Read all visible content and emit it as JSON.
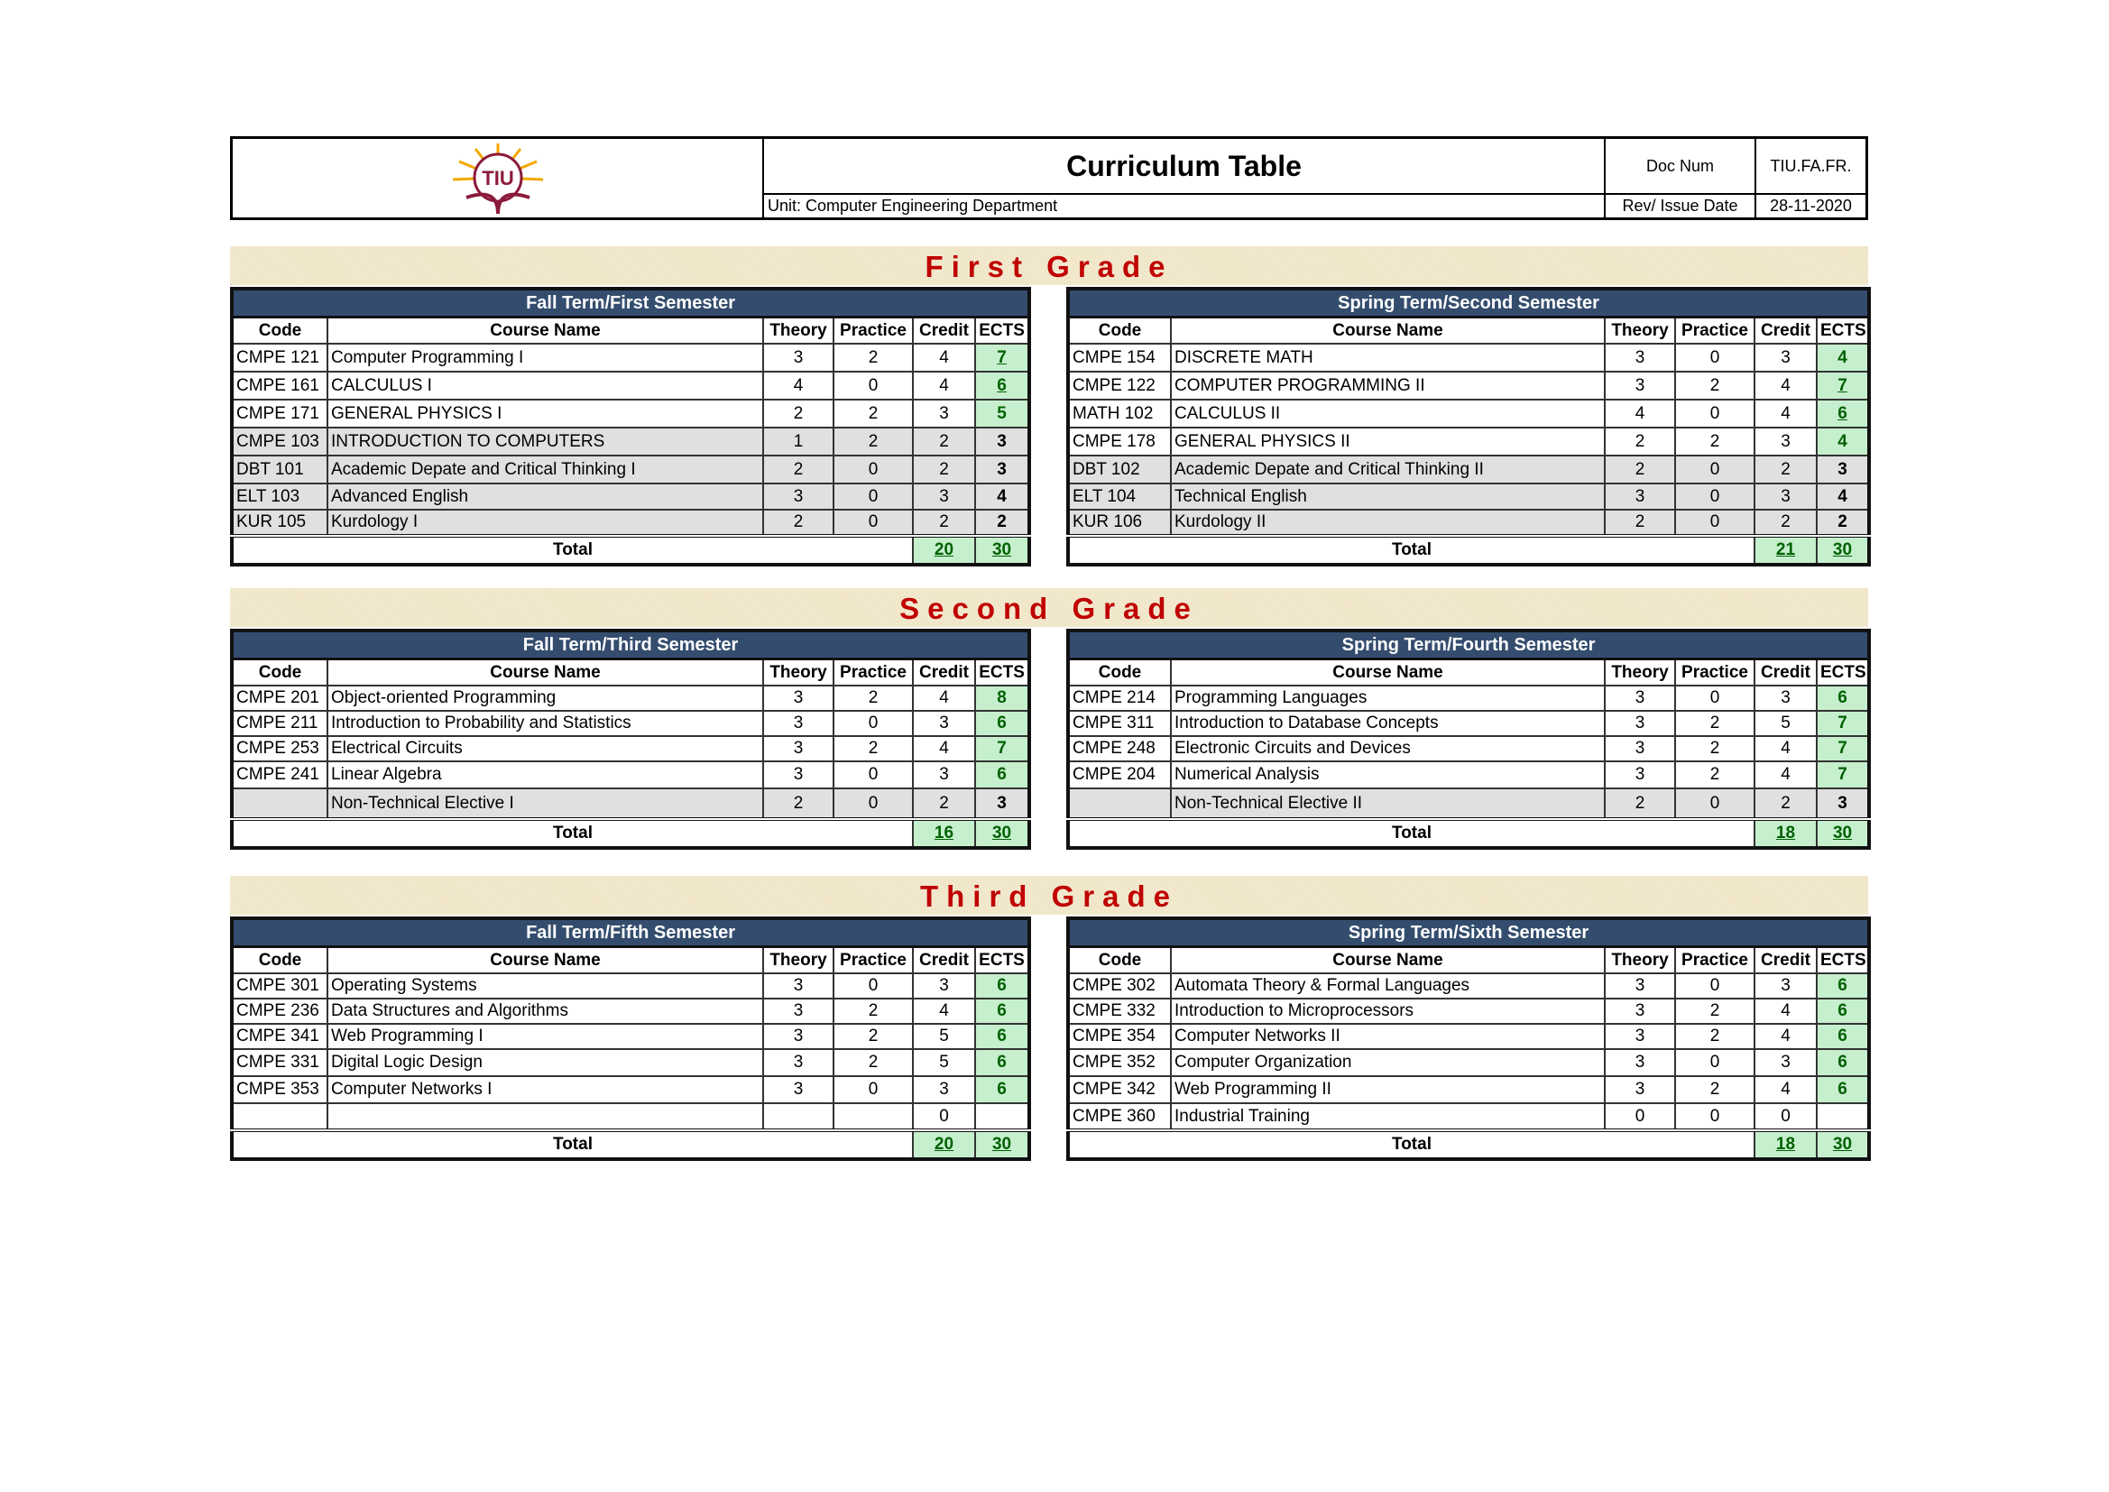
{
  "header": {
    "title": "Curriculum Table",
    "unit": "Unit: Computer Engineering Department",
    "doc_num_label": "Doc Num",
    "doc_num_value": "TIU.FA.FR.",
    "rev_label": "Rev/ Issue Date",
    "rev_value": "28-11-2020",
    "logo_text": "TIU"
  },
  "columns": [
    "Code",
    "Course Name",
    "Theory",
    "Practice",
    "Credit",
    "ECTS"
  ],
  "total_label": "Total",
  "colors": {
    "header_bg": "#344d6e",
    "grade_title": "#c00000",
    "ects_green_bg": "#c6efce",
    "ects_green_text": "#006100",
    "shaded_row": "#e0e0e0"
  },
  "grades": [
    {
      "title": "First Grade",
      "semesters": [
        {
          "title": "Fall Term/First Semester",
          "total_credit": "20",
          "total_ects": "30",
          "rows": [
            {
              "code": "CMPE 121",
              "name": "Computer Programming I",
              "theory": "3",
              "practice": "2",
              "credit": "4",
              "ects": "7",
              "green": true,
              "underline": true,
              "shaded": false
            },
            {
              "code": "CMPE 161",
              "name": "CALCULUS I",
              "theory": "4",
              "practice": "0",
              "credit": "4",
              "ects": "6",
              "green": true,
              "underline": true,
              "shaded": false
            },
            {
              "code": "CMPE 171",
              "name": "GENERAL PHYSICS I",
              "theory": "2",
              "practice": "2",
              "credit": "3",
              "ects": "5",
              "green": true,
              "underline": false,
              "shaded": false
            },
            {
              "code": "CMPE 103",
              "name": "INTRODUCTION TO COMPUTERS",
              "theory": "1",
              "practice": "2",
              "credit": "2",
              "ects": "3",
              "green": false,
              "underline": false,
              "shaded": true
            },
            {
              "code": "DBT 101",
              "name": "Academic Depate and Critical Thinking I",
              "theory": "2",
              "practice": "0",
              "credit": "2",
              "ects": "3",
              "green": false,
              "underline": false,
              "shaded": true
            },
            {
              "code": "ELT 103",
              "name": "Advanced English",
              "theory": "3",
              "practice": "0",
              "credit": "3",
              "ects": "4",
              "green": false,
              "underline": false,
              "shaded": true
            },
            {
              "code": "KUR 105",
              "name": "Kurdology I",
              "theory": "2",
              "practice": "0",
              "credit": "2",
              "ects": "2",
              "green": false,
              "underline": false,
              "shaded": true
            }
          ]
        },
        {
          "title": "Spring Term/Second Semester",
          "total_credit": "21",
          "total_ects": "30",
          "rows": [
            {
              "code": "CMPE 154",
              "name": "DISCRETE MATH",
              "theory": "3",
              "practice": "0",
              "credit": "3",
              "ects": "4",
              "green": true,
              "underline": false,
              "shaded": false
            },
            {
              "code": "CMPE 122",
              "name": "COMPUTER PROGRAMMING II",
              "theory": "3",
              "practice": "2",
              "credit": "4",
              "ects": "7",
              "green": true,
              "underline": true,
              "shaded": false
            },
            {
              "code": "MATH 102",
              "name": "CALCULUS II",
              "theory": "4",
              "practice": "0",
              "credit": "4",
              "ects": "6",
              "green": true,
              "underline": true,
              "shaded": false
            },
            {
              "code": "CMPE 178",
              "name": "GENERAL PHYSICS II",
              "theory": "2",
              "practice": "2",
              "credit": "3",
              "ects": "4",
              "green": true,
              "underline": false,
              "shaded": false
            },
            {
              "code": "DBT 102",
              "name": "Academic Depate and Critical Thinking II",
              "theory": "2",
              "practice": "0",
              "credit": "2",
              "ects": "3",
              "green": false,
              "underline": false,
              "shaded": true
            },
            {
              "code": "ELT 104",
              "name": "Technical English",
              "theory": "3",
              "practice": "0",
              "credit": "3",
              "ects": "4",
              "green": false,
              "underline": false,
              "shaded": true
            },
            {
              "code": "KUR 106",
              "name": "Kurdology II",
              "theory": "2",
              "practice": "0",
              "credit": "2",
              "ects": "2",
              "green": false,
              "underline": false,
              "shaded": true
            }
          ]
        }
      ]
    },
    {
      "title": "Second Grade",
      "semesters": [
        {
          "title": "Fall Term/Third Semester",
          "total_credit": "16",
          "total_ects": "30",
          "rows": [
            {
              "code": "CMPE 201",
              "name": "Object-oriented Programming",
              "theory": "3",
              "practice": "2",
              "credit": "4",
              "ects": "8",
              "green": true,
              "underline": false,
              "shaded": false
            },
            {
              "code": "CMPE 211",
              "name": "Introduction to Probability and Statistics",
              "theory": "3",
              "practice": "0",
              "credit": "3",
              "ects": "6",
              "green": true,
              "underline": false,
              "shaded": false
            },
            {
              "code": "CMPE 253",
              "name": "Electrical Circuits",
              "theory": "3",
              "practice": "2",
              "credit": "4",
              "ects": "7",
              "green": true,
              "underline": false,
              "shaded": false
            },
            {
              "code": "CMPE 241",
              "name": "Linear Algebra",
              "theory": "3",
              "practice": "0",
              "credit": "3",
              "ects": "6",
              "green": true,
              "underline": false,
              "shaded": false
            },
            {
              "code": "",
              "name": "Non-Technical Elective I",
              "theory": "2",
              "practice": "0",
              "credit": "2",
              "ects": "3",
              "green": false,
              "underline": false,
              "shaded": true
            }
          ]
        },
        {
          "title": "Spring Term/Fourth Semester",
          "total_credit": "18",
          "total_ects": "30",
          "rows": [
            {
              "code": "CMPE 214",
              "name": "Programming Languages",
              "theory": "3",
              "practice": "0",
              "credit": "3",
              "ects": "6",
              "green": true,
              "underline": false,
              "shaded": false
            },
            {
              "code": "CMPE 311",
              "name": "Introduction to Database Concepts",
              "theory": "3",
              "practice": "2",
              "credit": "5",
              "ects": "7",
              "green": true,
              "underline": false,
              "shaded": false
            },
            {
              "code": "CMPE 248",
              "name": "Electronic Circuits and Devices",
              "theory": "3",
              "practice": "2",
              "credit": "4",
              "ects": "7",
              "green": true,
              "underline": false,
              "shaded": false
            },
            {
              "code": "CMPE 204",
              "name": "Numerical Analysis",
              "theory": "3",
              "practice": "2",
              "credit": "4",
              "ects": "7",
              "green": true,
              "underline": false,
              "shaded": false
            },
            {
              "code": "",
              "name": "Non-Technical Elective II",
              "theory": "2",
              "practice": "0",
              "credit": "2",
              "ects": "3",
              "green": false,
              "underline": false,
              "shaded": true
            }
          ]
        }
      ]
    },
    {
      "title": "Third Grade",
      "semesters": [
        {
          "title": "Fall Term/Fifth Semester",
          "total_credit": "20",
          "total_ects": "30",
          "rows": [
            {
              "code": "CMPE 301",
              "name": "Operating Systems",
              "theory": "3",
              "practice": "0",
              "credit": "3",
              "ects": "6",
              "green": true,
              "underline": false,
              "shaded": false
            },
            {
              "code": "CMPE 236",
              "name": "Data Structures and Algorithms",
              "theory": "3",
              "practice": "2",
              "credit": "4",
              "ects": "6",
              "green": true,
              "underline": false,
              "shaded": false
            },
            {
              "code": "CMPE 341",
              "name": "Web Programming I",
              "theory": "3",
              "practice": "2",
              "credit": "5",
              "ects": "6",
              "green": true,
              "underline": false,
              "shaded": false
            },
            {
              "code": "CMPE 331",
              "name": "Digital Logic Design",
              "theory": "3",
              "practice": "2",
              "credit": "5",
              "ects": "6",
              "green": true,
              "underline": false,
              "shaded": false
            },
            {
              "code": "CMPE 353",
              "name": "Computer Networks I",
              "theory": "3",
              "practice": "0",
              "credit": "3",
              "ects": "6",
              "green": true,
              "underline": false,
              "shaded": false
            },
            {
              "code": "",
              "name": "",
              "theory": "",
              "practice": "",
              "credit": "0",
              "ects": "",
              "green": false,
              "underline": false,
              "shaded": false
            }
          ]
        },
        {
          "title": "Spring Term/Sixth Semester",
          "total_credit": "18",
          "total_ects": "30",
          "rows": [
            {
              "code": "CMPE 302",
              "name": "Automata Theory & Formal Languages",
              "theory": "3",
              "practice": "0",
              "credit": "3",
              "ects": "6",
              "green": true,
              "underline": false,
              "shaded": false
            },
            {
              "code": "CMPE 332",
              "name": "Introduction to Microprocessors",
              "theory": "3",
              "practice": "2",
              "credit": "4",
              "ects": "6",
              "green": true,
              "underline": false,
              "shaded": false
            },
            {
              "code": "CMPE 354",
              "name": "Computer Networks II",
              "theory": "3",
              "practice": "2",
              "credit": "4",
              "ects": "6",
              "green": true,
              "underline": false,
              "shaded": false
            },
            {
              "code": "CMPE 352",
              "name": "Computer Organization",
              "theory": "3",
              "practice": "0",
              "credit": "3",
              "ects": "6",
              "green": true,
              "underline": false,
              "shaded": false
            },
            {
              "code": "CMPE 342",
              "name": "Web Programming II",
              "theory": "3",
              "practice": "2",
              "credit": "4",
              "ects": "6",
              "green": true,
              "underline": false,
              "shaded": false
            },
            {
              "code": "CMPE 360",
              "name": "Industrial Training",
              "theory": "0",
              "practice": "0",
              "credit": "0",
              "ects": "",
              "green": false,
              "underline": false,
              "shaded": false
            }
          ]
        }
      ]
    }
  ]
}
